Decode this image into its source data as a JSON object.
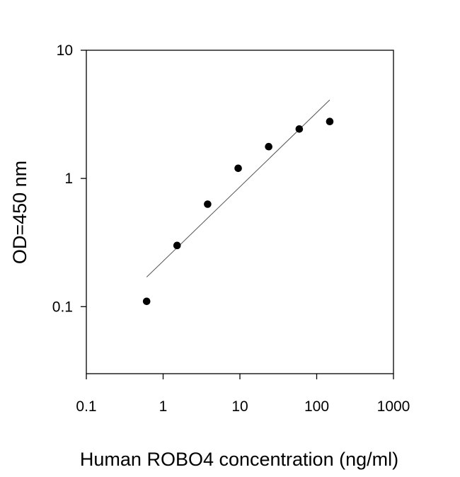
{
  "chart_data": {
    "type": "scatter",
    "title": "",
    "xlabel": "Human ROBO4 concentration (ng/ml)",
    "ylabel": "OD=450 nm",
    "x_scale": "log",
    "y_scale": "log",
    "xlim": [
      0.1,
      1000
    ],
    "ylim": [
      0.03,
      10
    ],
    "x_ticks": [
      {
        "value": 0.1,
        "label": "0.1"
      },
      {
        "value": 1,
        "label": "1"
      },
      {
        "value": 10,
        "label": "10"
      },
      {
        "value": 100,
        "label": "100"
      },
      {
        "value": 1000,
        "label": "1000"
      }
    ],
    "y_ticks": [
      {
        "value": 0.1,
        "label": "0.1"
      },
      {
        "value": 1,
        "label": "1"
      },
      {
        "value": 10,
        "label": "10"
      }
    ],
    "grid": false,
    "legend": "none",
    "series": [
      {
        "type": "scatter",
        "marker_color": "#000000",
        "points": [
          {
            "x": 0.61,
            "y": 0.11
          },
          {
            "x": 1.52,
            "y": 0.3
          },
          {
            "x": 3.8,
            "y": 0.63
          },
          {
            "x": 9.5,
            "y": 1.2
          },
          {
            "x": 23.7,
            "y": 1.77
          },
          {
            "x": 59.3,
            "y": 2.43
          },
          {
            "x": 148,
            "y": 2.78
          }
        ]
      },
      {
        "type": "fit-line",
        "line_color": "#555555",
        "points": [
          {
            "x": 0.61,
            "y": 0.17
          },
          {
            "x": 148,
            "y": 4.1
          }
        ]
      }
    ]
  }
}
